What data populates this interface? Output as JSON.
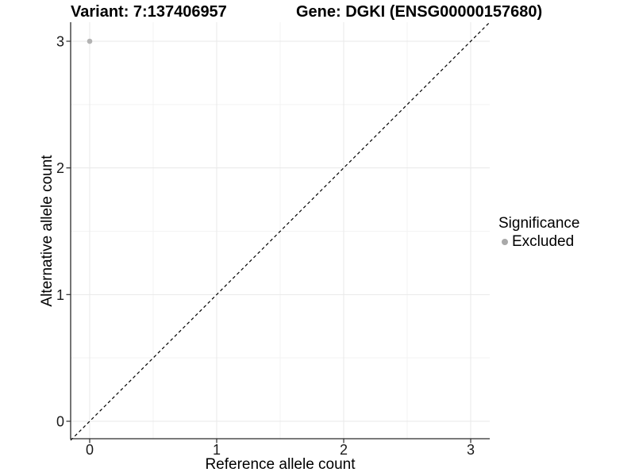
{
  "chart_data": {
    "type": "scatter",
    "titles": [
      "Variant: 7:137406957",
      "Gene: DGKI (ENSG00000157680)"
    ],
    "xlabel": "Reference allele count",
    "ylabel": "Alternative allele count",
    "xlim": [
      -0.15,
      3.15
    ],
    "ylim": [
      -0.15,
      3.15
    ],
    "x_ticks": [
      0,
      1,
      2,
      3
    ],
    "y_ticks": [
      0,
      1,
      2,
      3
    ],
    "x_minor_ticks": [
      0.5,
      1.5,
      2.5
    ],
    "y_minor_ticks": [
      0.5,
      1.5,
      2.5
    ],
    "grid": "major and minor gridlines on, white background",
    "reference_line": {
      "slope": 1,
      "intercept": 0,
      "style": "dashed",
      "color": "#000000"
    },
    "series": [
      {
        "name": "Excluded",
        "color": "#b3b3b3",
        "points": [
          {
            "x": 0,
            "y": 3
          }
        ]
      }
    ],
    "legend": {
      "title": "Significance",
      "position": "right",
      "items": [
        {
          "label": "Excluded",
          "color": "#a9a9a9"
        }
      ]
    }
  },
  "colors": {
    "background": "#ffffff",
    "grid_major": "#e8e8e8",
    "grid_minor": "#f3f3f3",
    "axis": "#2b2b2b",
    "tick_text": "#1a1a1a",
    "title_text": "#000000"
  }
}
